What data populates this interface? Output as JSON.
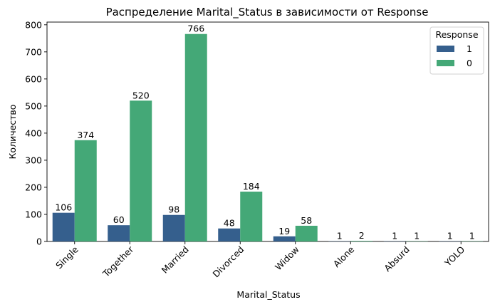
{
  "chart_data": {
    "type": "bar",
    "title": "Распределение Marital_Status в зависимости от Response",
    "xlabel": "Marital_Status",
    "ylabel": "Количество",
    "ylim": [
      0,
      810
    ],
    "yticks": [
      0,
      100,
      200,
      300,
      400,
      500,
      600,
      700,
      800
    ],
    "categories": [
      "Single",
      "Together",
      "Married",
      "Divorced",
      "Widow",
      "Alone",
      "Absurd",
      "YOLO"
    ],
    "series": [
      {
        "name": "1",
        "color": "#355f8d",
        "values": [
          106,
          60,
          98,
          48,
          19,
          1,
          1,
          1
        ]
      },
      {
        "name": "0",
        "color": "#44a877",
        "values": [
          374,
          520,
          766,
          184,
          58,
          2,
          1,
          1
        ]
      }
    ],
    "legend": {
      "title": "Response",
      "position": "top-right"
    },
    "grid": false
  }
}
